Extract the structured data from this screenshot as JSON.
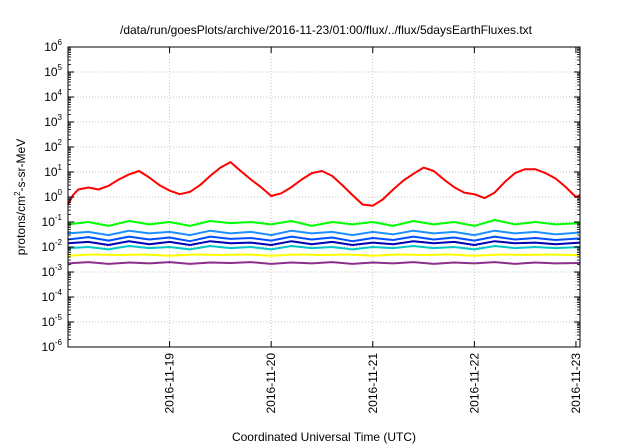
{
  "chart_data": {
    "type": "line",
    "title": "/data/run/goesPlots/archive/2016-11-23/01:00/flux/../flux/5daysEarthFluxes.txt",
    "xlabel": "Coordinated Universal Time (UTC)",
    "ylabel": {
      "prefix": "protons/cm",
      "sup": "2",
      "suffix": "-s-sr-MeV"
    },
    "x_unit": "days since 2016-11-18 00:00 UTC",
    "xlim": [
      0.0,
      5.04
    ],
    "ylim": [
      1e-06,
      1000000.0
    ],
    "yscale": "log",
    "grid": true,
    "x_ticks": [
      {
        "x": 1,
        "label": "2016-11-19"
      },
      {
        "x": 2,
        "label": "2016-11-20"
      },
      {
        "x": 3,
        "label": "2016-11-21"
      },
      {
        "x": 4,
        "label": "2016-11-22"
      },
      {
        "x": 5,
        "label": "2016-11-23"
      }
    ],
    "y_ticks": [
      {
        "value": 1e-06,
        "base": "10",
        "exp": "-6"
      },
      {
        "value": 1e-05,
        "base": "10",
        "exp": "-5"
      },
      {
        "value": 0.0001,
        "base": "10",
        "exp": "-4"
      },
      {
        "value": 0.001,
        "base": "10",
        "exp": "-3"
      },
      {
        "value": 0.01,
        "base": "10",
        "exp": "-2"
      },
      {
        "value": 0.1,
        "base": "10",
        "exp": "-1"
      },
      {
        "value": 1,
        "base": "10",
        "exp": "0"
      },
      {
        "value": 10.0,
        "base": "10",
        "exp": "1"
      },
      {
        "value": 100.0,
        "base": "10",
        "exp": "2"
      },
      {
        "value": 1000.0,
        "base": "10",
        "exp": "3"
      },
      {
        "value": 10000.0,
        "base": "10",
        "exp": "4"
      },
      {
        "value": 100000.0,
        "base": "10",
        "exp": "5"
      },
      {
        "value": 1000000.0,
        "base": "10",
        "exp": "6"
      }
    ],
    "series": [
      {
        "color": "#ff0000",
        "x": [
          0.0,
          0.05,
          0.1,
          0.2,
          0.3,
          0.4,
          0.5,
          0.6,
          0.7,
          0.8,
          0.9,
          1.0,
          1.1,
          1.2,
          1.3,
          1.4,
          1.5,
          1.6,
          1.7,
          1.8,
          1.9,
          2.0,
          2.1,
          2.2,
          2.3,
          2.4,
          2.5,
          2.6,
          2.7,
          2.8,
          2.9,
          3.0,
          3.1,
          3.2,
          3.3,
          3.4,
          3.5,
          3.6,
          3.7,
          3.8,
          3.9,
          4.0,
          4.1,
          4.2,
          4.3,
          4.4,
          4.5,
          4.6,
          4.7,
          4.8,
          4.9,
          5.0,
          5.04
        ],
        "y": [
          0.5,
          1.2,
          2.0,
          2.4,
          2.0,
          2.8,
          5.0,
          8.0,
          11.0,
          6.0,
          3.0,
          1.8,
          1.3,
          1.6,
          3.0,
          7.0,
          15.0,
          25.0,
          11.0,
          5.0,
          2.5,
          1.1,
          1.4,
          2.5,
          5.0,
          9.0,
          11.0,
          7.0,
          3.0,
          1.2,
          0.5,
          0.45,
          0.8,
          2.0,
          4.5,
          8.5,
          15.0,
          11.0,
          5.0,
          2.5,
          1.5,
          1.3,
          0.9,
          1.5,
          4.0,
          9.0,
          13.0,
          13.0,
          9.0,
          5.5,
          2.5,
          1.0,
          1.2
        ]
      },
      {
        "color": "#00ff00",
        "x": [
          0.0,
          0.2,
          0.4,
          0.6,
          0.8,
          1.0,
          1.2,
          1.4,
          1.6,
          1.8,
          2.0,
          2.2,
          2.4,
          2.6,
          2.8,
          3.0,
          3.2,
          3.4,
          3.6,
          3.8,
          4.0,
          4.2,
          4.4,
          4.6,
          4.8,
          5.04
        ],
        "y": [
          0.08,
          0.1,
          0.07,
          0.11,
          0.08,
          0.1,
          0.07,
          0.11,
          0.09,
          0.1,
          0.08,
          0.11,
          0.07,
          0.1,
          0.08,
          0.1,
          0.07,
          0.11,
          0.08,
          0.1,
          0.07,
          0.12,
          0.08,
          0.1,
          0.08,
          0.09
        ]
      },
      {
        "color": "#1e90ff",
        "x": [
          0.0,
          0.2,
          0.4,
          0.6,
          0.8,
          1.0,
          1.2,
          1.4,
          1.6,
          1.8,
          2.0,
          2.2,
          2.4,
          2.6,
          2.8,
          3.0,
          3.2,
          3.4,
          3.6,
          3.8,
          4.0,
          4.2,
          4.4,
          4.6,
          4.8,
          5.04
        ],
        "y": [
          0.035,
          0.04,
          0.03,
          0.045,
          0.035,
          0.04,
          0.03,
          0.045,
          0.035,
          0.04,
          0.03,
          0.045,
          0.035,
          0.04,
          0.03,
          0.04,
          0.032,
          0.045,
          0.035,
          0.04,
          0.03,
          0.045,
          0.035,
          0.04,
          0.032,
          0.038
        ]
      },
      {
        "color": "#0050ff",
        "x": [
          0.0,
          0.2,
          0.4,
          0.6,
          0.8,
          1.0,
          1.2,
          1.4,
          1.6,
          1.8,
          2.0,
          2.2,
          2.4,
          2.6,
          2.8,
          3.0,
          3.2,
          3.4,
          3.6,
          3.8,
          4.0,
          4.2,
          4.4,
          4.6,
          4.8,
          5.04
        ],
        "y": [
          0.02,
          0.025,
          0.018,
          0.026,
          0.02,
          0.024,
          0.017,
          0.026,
          0.021,
          0.023,
          0.018,
          0.026,
          0.02,
          0.024,
          0.017,
          0.023,
          0.019,
          0.026,
          0.02,
          0.024,
          0.018,
          0.026,
          0.02,
          0.023,
          0.019,
          0.022
        ]
      },
      {
        "color": "#0000b4",
        "x": [
          0.0,
          0.2,
          0.4,
          0.6,
          0.8,
          1.0,
          1.2,
          1.4,
          1.6,
          1.8,
          2.0,
          2.2,
          2.4,
          2.6,
          2.8,
          3.0,
          3.2,
          3.4,
          3.6,
          3.8,
          4.0,
          4.2,
          4.4,
          4.6,
          4.8,
          5.04
        ],
        "y": [
          0.014,
          0.016,
          0.012,
          0.017,
          0.013,
          0.016,
          0.012,
          0.017,
          0.014,
          0.015,
          0.012,
          0.017,
          0.013,
          0.016,
          0.012,
          0.015,
          0.013,
          0.017,
          0.014,
          0.016,
          0.012,
          0.017,
          0.014,
          0.015,
          0.013,
          0.015
        ]
      },
      {
        "color": "#00c8c8",
        "x": [
          0.0,
          0.2,
          0.4,
          0.6,
          0.8,
          1.0,
          1.2,
          1.4,
          1.6,
          1.8,
          2.0,
          2.2,
          2.4,
          2.6,
          2.8,
          3.0,
          3.2,
          3.4,
          3.6,
          3.8,
          4.0,
          4.2,
          4.4,
          4.6,
          4.8,
          5.04
        ],
        "y": [
          0.009,
          0.01,
          0.008,
          0.011,
          0.009,
          0.01,
          0.008,
          0.011,
          0.009,
          0.01,
          0.008,
          0.011,
          0.009,
          0.01,
          0.008,
          0.01,
          0.009,
          0.011,
          0.009,
          0.01,
          0.008,
          0.011,
          0.009,
          0.01,
          0.009,
          0.01
        ]
      },
      {
        "color": "#ffff00",
        "x": [
          0.0,
          0.25,
          0.5,
          0.75,
          1.0,
          1.25,
          1.5,
          1.75,
          2.0,
          2.25,
          2.5,
          2.75,
          3.0,
          3.25,
          3.5,
          3.75,
          4.0,
          4.25,
          4.5,
          4.75,
          5.04
        ],
        "y": [
          0.0045,
          0.005,
          0.0048,
          0.005,
          0.0045,
          0.005,
          0.0048,
          0.005,
          0.0045,
          0.005,
          0.0048,
          0.005,
          0.0045,
          0.005,
          0.0048,
          0.005,
          0.0045,
          0.005,
          0.0048,
          0.005,
          0.0047
        ]
      },
      {
        "color": "#8b2f8b",
        "x": [
          0.0,
          0.2,
          0.4,
          0.6,
          0.8,
          1.0,
          1.2,
          1.4,
          1.6,
          1.8,
          2.0,
          2.2,
          2.4,
          2.6,
          2.8,
          3.0,
          3.2,
          3.4,
          3.6,
          3.8,
          4.0,
          4.2,
          4.4,
          4.6,
          4.8,
          5.04
        ],
        "y": [
          0.0022,
          0.0025,
          0.0021,
          0.0024,
          0.0022,
          0.0025,
          0.0021,
          0.0024,
          0.0023,
          0.0025,
          0.0021,
          0.0024,
          0.0022,
          0.0025,
          0.0021,
          0.0024,
          0.0022,
          0.0025,
          0.0021,
          0.0024,
          0.0022,
          0.0025,
          0.0021,
          0.0024,
          0.0022,
          0.0023
        ]
      }
    ]
  }
}
